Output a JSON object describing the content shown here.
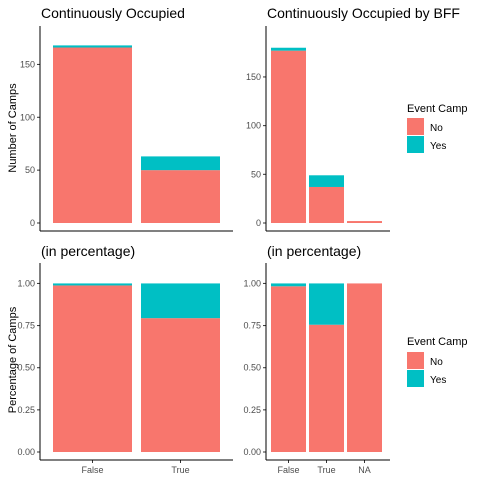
{
  "colors": {
    "no": "#F8766D",
    "yes": "#00BFC4"
  },
  "legends": [
    {
      "title": "Event Camp",
      "entries": [
        {
          "label": "No",
          "key": "no"
        },
        {
          "label": "Yes",
          "key": "yes"
        }
      ]
    },
    {
      "title": "Event Camp",
      "entries": [
        {
          "label": "No",
          "key": "no"
        },
        {
          "label": "Yes",
          "key": "yes"
        }
      ]
    }
  ],
  "chart_data": [
    {
      "type": "bar",
      "stacked": true,
      "title": "Continuously Occupied",
      "ylabel": "Number of Camps",
      "categories": [
        "",
        ""
      ],
      "ylim": [
        0,
        175
      ],
      "yticks": [
        0,
        50,
        100,
        150
      ],
      "series": [
        {
          "name": "No",
          "values": [
            166,
            50
          ]
        },
        {
          "name": "Yes",
          "values": [
            2,
            13
          ]
        }
      ]
    },
    {
      "type": "bar",
      "stacked": true,
      "title": "Continuously Occupied by BFF",
      "ylabel": "",
      "categories": [
        "",
        "",
        ""
      ],
      "ylim": [
        0,
        190
      ],
      "yticks": [
        0,
        50,
        100,
        150
      ],
      "series": [
        {
          "name": "No",
          "values": [
            177,
            37,
            2
          ]
        },
        {
          "name": "Yes",
          "values": [
            3,
            12,
            0
          ]
        }
      ]
    },
    {
      "type": "bar",
      "stacked": true,
      "title": "(in percentage)",
      "ylabel": "Percentage of Camps",
      "categories": [
        "False",
        "True"
      ],
      "ylim": [
        0,
        1.05
      ],
      "yticks": [
        "0.00",
        "0.25",
        "0.50",
        "0.75",
        "1.00"
      ],
      "series": [
        {
          "name": "No",
          "values": [
            0.988,
            0.794
          ]
        },
        {
          "name": "Yes",
          "values": [
            0.012,
            0.206
          ]
        }
      ]
    },
    {
      "type": "bar",
      "stacked": true,
      "title": "(in percentage)",
      "ylabel": "",
      "categories": [
        "False",
        "True",
        "NA"
      ],
      "ylim": [
        0,
        1.05
      ],
      "yticks": [
        "0.00",
        "0.25",
        "0.50",
        "0.75",
        "1.00"
      ],
      "series": [
        {
          "name": "No",
          "values": [
            0.983,
            0.755,
            1.0
          ]
        },
        {
          "name": "Yes",
          "values": [
            0.017,
            0.245,
            0.0
          ]
        }
      ]
    }
  ]
}
